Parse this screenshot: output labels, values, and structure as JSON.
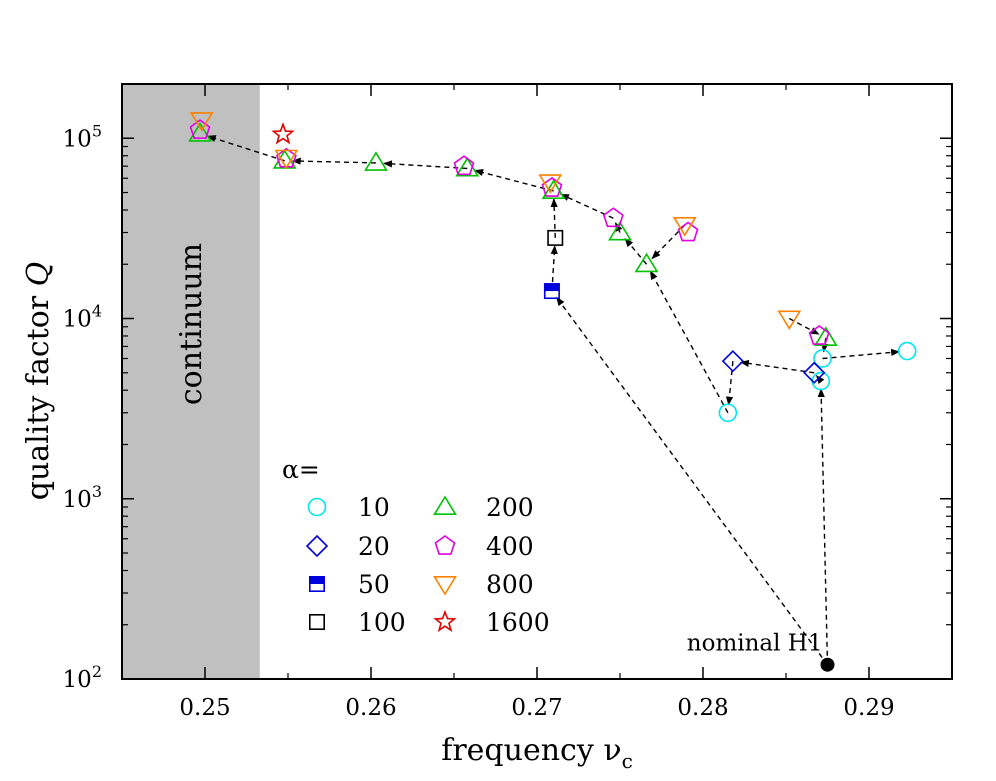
{
  "chart_data": {
    "type": "scatter",
    "xlabel": "frequency ν",
    "xlabel_sub": "c",
    "ylabel": "quality factor ",
    "ylabel_var": "Q",
    "xlim": [
      0.245,
      0.295
    ],
    "ylim": [
      100,
      200000
    ],
    "yscale": "log",
    "x_ticks": [
      0.25,
      0.26,
      0.27,
      0.28,
      0.29
    ],
    "x_tick_labels": [
      "0.25",
      "0.26",
      "0.27",
      "0.28",
      "0.29"
    ],
    "y_ticks": [
      100,
      1000,
      10000,
      100000
    ],
    "y_tick_labels": [
      {
        "base": "10",
        "exp": "2"
      },
      {
        "base": "10",
        "exp": "3"
      },
      {
        "base": "10",
        "exp": "4"
      },
      {
        "base": "10",
        "exp": "5"
      }
    ],
    "grid": false,
    "continuum_region": {
      "x_end": 0.2533,
      "label": "continuum",
      "color": "#c0c0c0"
    },
    "legend": {
      "title": "α=",
      "placement": "lower-left"
    },
    "series": [
      {
        "name": "10",
        "marker": "circle",
        "color": "#00e5ee",
        "filled": false,
        "points": [
          [
            0.2815,
            3000
          ],
          [
            0.2871,
            4500
          ],
          [
            0.2872,
            6000
          ],
          [
            0.2923,
            6600
          ]
        ]
      },
      {
        "name": "20",
        "marker": "diamond",
        "color": "#0000dd",
        "filled": false,
        "points": [
          [
            0.2818,
            5800
          ],
          [
            0.2867,
            5000
          ]
        ]
      },
      {
        "name": "50",
        "marker": "square-half",
        "color": "#0000dd",
        "filled": true,
        "points": [
          [
            0.2709,
            14200
          ]
        ]
      },
      {
        "name": "100",
        "marker": "square",
        "color": "#000000",
        "filled": false,
        "points": [
          [
            0.2711,
            28000
          ]
        ]
      },
      {
        "name": "200",
        "marker": "triangle-up",
        "color": "#00c000",
        "filled": false,
        "points": [
          [
            0.2497,
            106000
          ],
          [
            0.2548,
            75000
          ],
          [
            0.2603,
            73000
          ],
          [
            0.2658,
            68000
          ],
          [
            0.271,
            51000
          ],
          [
            0.275,
            30000
          ],
          [
            0.2766,
            20000
          ],
          [
            0.2874,
            7800
          ]
        ]
      },
      {
        "name": "400",
        "marker": "pentagon",
        "color": "#e000e0",
        "filled": false,
        "points": [
          [
            0.2497,
            111000
          ],
          [
            0.2549,
            77000
          ],
          [
            0.2656,
            70000
          ],
          [
            0.2709,
            53000
          ],
          [
            0.2746,
            36000
          ],
          [
            0.2791,
            30000
          ],
          [
            0.287,
            8000
          ]
        ]
      },
      {
        "name": "800",
        "marker": "triangle-down",
        "color": "#ff8000",
        "filled": false,
        "points": [
          [
            0.2498,
            126000
          ],
          [
            0.2549,
            78000
          ],
          [
            0.2708,
            57000
          ],
          [
            0.2789,
            33000
          ],
          [
            0.2852,
            10000
          ]
        ]
      },
      {
        "name": "1600",
        "marker": "star",
        "color": "#e00000",
        "filled": false,
        "points": [
          [
            0.2547,
            105000
          ]
        ]
      }
    ],
    "nominal": {
      "label": "nominal H1",
      "x": 0.2875,
      "y": 120,
      "color": "#000000"
    },
    "paths": [
      [
        [
          0.2875,
          120
        ],
        [
          0.2709,
          14200
        ],
        [
          0.2711,
          28000
        ],
        [
          0.271,
          51000
        ],
        [
          0.2658,
          68000
        ],
        [
          0.2603,
          73000
        ],
        [
          0.2548,
          75000
        ],
        [
          0.2497,
          106000
        ]
      ],
      [
        [
          0.2875,
          120
        ],
        [
          0.2871,
          4500
        ],
        [
          0.2867,
          5000
        ],
        [
          0.2818,
          5800
        ],
        [
          0.2815,
          3000
        ],
        [
          0.2766,
          20000
        ],
        [
          0.275,
          30000
        ],
        [
          0.2746,
          36000
        ],
        [
          0.271,
          51000
        ]
      ],
      [
        [
          0.2872,
          6000
        ],
        [
          0.2923,
          6600
        ]
      ],
      [
        [
          0.2874,
          7800
        ],
        [
          0.2872,
          6000
        ]
      ],
      [
        [
          0.2852,
          10000
        ],
        [
          0.2874,
          7800
        ]
      ],
      [
        [
          0.2789,
          33000
        ],
        [
          0.2766,
          20000
        ]
      ]
    ]
  }
}
